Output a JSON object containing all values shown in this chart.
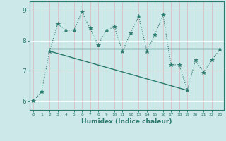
{
  "xlabel": "Humidex (Indice chaleur)",
  "xlim": [
    -0.5,
    23.5
  ],
  "ylim": [
    5.7,
    9.3
  ],
  "yticks": [
    6,
    7,
    8,
    9
  ],
  "xticks": [
    0,
    1,
    2,
    3,
    4,
    5,
    6,
    7,
    8,
    9,
    10,
    11,
    12,
    13,
    14,
    15,
    16,
    17,
    18,
    19,
    20,
    21,
    22,
    23
  ],
  "bg_color": "#cce8e8",
  "line_color": "#2a7a6e",
  "grid_color": "#b0d8d8",
  "series1_x": [
    0,
    1,
    2,
    3,
    4,
    5,
    6,
    7,
    8,
    9,
    10,
    11,
    12,
    13,
    14,
    15,
    16,
    17,
    18,
    19,
    20,
    21,
    22,
    23
  ],
  "series1_y": [
    6.0,
    6.3,
    7.65,
    8.55,
    8.35,
    8.35,
    8.95,
    8.4,
    7.85,
    8.35,
    8.45,
    7.65,
    8.25,
    8.8,
    7.65,
    8.2,
    8.85,
    7.2,
    7.2,
    6.35,
    7.35,
    6.95,
    7.35,
    7.7
  ],
  "series2_x": [
    2,
    23
  ],
  "series2_y": [
    7.73,
    7.73
  ],
  "series3_x": [
    2,
    19
  ],
  "series3_y": [
    7.65,
    6.35
  ]
}
